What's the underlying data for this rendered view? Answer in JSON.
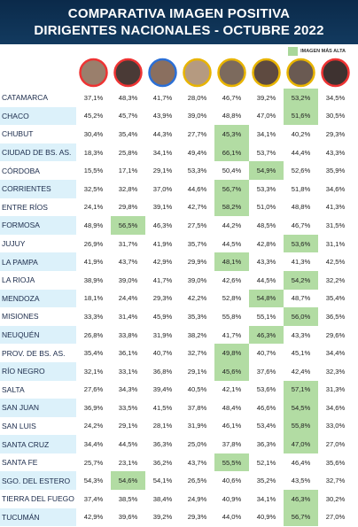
{
  "header": {
    "title_line1": "COMPARATIVA IMAGEN POSITIVA",
    "title_line2": "DIRIGENTES NACIONALES - OCTUBRE 2022"
  },
  "legend": {
    "label": "IMAGEN MÁS ALTA",
    "color": "#a9d79a"
  },
  "table": {
    "highlight_color": "#b2dca3",
    "rows": [
      {
        "name": "CATAMARCA",
        "values": [
          "37,1%",
          "48,3%",
          "41,7%",
          "28,0%",
          "46,7%",
          "39,2%",
          "53,2%",
          "34,5%"
        ],
        "highlight": 6
      },
      {
        "name": "CHACO",
        "values": [
          "45,2%",
          "45,7%",
          "43,9%",
          "39,0%",
          "48,8%",
          "47,0%",
          "51,6%",
          "30,5%"
        ],
        "highlight": 6
      },
      {
        "name": "CHUBUT",
        "values": [
          "30,4%",
          "35,4%",
          "44,3%",
          "27,7%",
          "45,3%",
          "34,1%",
          "40,2%",
          "29,3%"
        ],
        "highlight": 4
      },
      {
        "name": "CIUDAD DE BS. AS.",
        "values": [
          "18,3%",
          "25,8%",
          "34,1%",
          "49,4%",
          "66,1%",
          "53,7%",
          "44,4%",
          "43,3%"
        ],
        "highlight": 4
      },
      {
        "name": "CÓRDOBA",
        "values": [
          "15,5%",
          "17,1%",
          "29,1%",
          "53,3%",
          "50,4%",
          "54,9%",
          "52,6%",
          "35,9%"
        ],
        "highlight": 5
      },
      {
        "name": "CORRIENTES",
        "values": [
          "32,5%",
          "32,8%",
          "37,0%",
          "44,6%",
          "56,7%",
          "53,3%",
          "51,8%",
          "34,6%"
        ],
        "highlight": 4
      },
      {
        "name": "ENTRE RÍOS",
        "values": [
          "24,1%",
          "29,8%",
          "39,1%",
          "42,7%",
          "58,2%",
          "51,0%",
          "48,8%",
          "41,3%"
        ],
        "highlight": 4
      },
      {
        "name": "FORMOSA",
        "values": [
          "48,9%",
          "56,5%",
          "46,3%",
          "27,5%",
          "44,2%",
          "48,5%",
          "46,7%",
          "31,5%"
        ],
        "highlight": 1
      },
      {
        "name": "JUJUY",
        "values": [
          "26,9%",
          "31,7%",
          "41,9%",
          "35,7%",
          "44,5%",
          "42,8%",
          "53,6%",
          "31,1%"
        ],
        "highlight": 6
      },
      {
        "name": "LA PAMPA",
        "values": [
          "41,9%",
          "43,7%",
          "42,9%",
          "29,9%",
          "48,1%",
          "43,3%",
          "41,3%",
          "42,5%"
        ],
        "highlight": 4
      },
      {
        "name": "LA RIOJA",
        "values": [
          "38,9%",
          "39,0%",
          "41,7%",
          "39,0%",
          "42,6%",
          "44,5%",
          "54,2%",
          "32,2%"
        ],
        "highlight": 6
      },
      {
        "name": "MENDOZA",
        "values": [
          "18,1%",
          "24,4%",
          "29,3%",
          "42,2%",
          "52,8%",
          "54,8%",
          "48,7%",
          "35,4%"
        ],
        "highlight": 5
      },
      {
        "name": "MISIONES",
        "values": [
          "33,3%",
          "31,4%",
          "45,9%",
          "35,3%",
          "55,8%",
          "55,1%",
          "56,0%",
          "36,5%"
        ],
        "highlight": 6
      },
      {
        "name": "NEUQUÉN",
        "values": [
          "26,8%",
          "33,8%",
          "31,9%",
          "38,2%",
          "41,7%",
          "46,3%",
          "43,3%",
          "29,6%"
        ],
        "highlight": 5
      },
      {
        "name": "PROV. DE BS. AS.",
        "values": [
          "35,4%",
          "36,1%",
          "40,7%",
          "32,7%",
          "49,8%",
          "40,7%",
          "45,1%",
          "34,4%"
        ],
        "highlight": 4
      },
      {
        "name": "RÍO NEGRO",
        "values": [
          "32,1%",
          "33,1%",
          "36,8%",
          "29,1%",
          "45,6%",
          "37,6%",
          "42,4%",
          "32,3%"
        ],
        "highlight": 4
      },
      {
        "name": "SALTA",
        "values": [
          "27,6%",
          "34,3%",
          "39,4%",
          "40,5%",
          "42,1%",
          "53,6%",
          "57,1%",
          "31,3%"
        ],
        "highlight": 6
      },
      {
        "name": "SAN JUAN",
        "values": [
          "36,9%",
          "33,5%",
          "41,5%",
          "37,8%",
          "48,4%",
          "46,6%",
          "54,5%",
          "34,6%"
        ],
        "highlight": 6
      },
      {
        "name": "SAN LUIS",
        "values": [
          "24,2%",
          "29,1%",
          "28,1%",
          "31,9%",
          "46,1%",
          "53,4%",
          "55,8%",
          "33,0%"
        ],
        "highlight": 6
      },
      {
        "name": "SANTA CRUZ",
        "values": [
          "34,4%",
          "44,5%",
          "36,3%",
          "25,0%",
          "37,8%",
          "36,3%",
          "47,0%",
          "27,0%"
        ],
        "highlight": 6
      },
      {
        "name": "SANTA FE",
        "values": [
          "25,7%",
          "23,1%",
          "36,2%",
          "43,7%",
          "55,5%",
          "52,1%",
          "46,4%",
          "35,6%"
        ],
        "highlight": 4
      },
      {
        "name": "SGO. DEL ESTERO",
        "values": [
          "54,3%",
          "54,6%",
          "54,1%",
          "26,5%",
          "40,6%",
          "35,2%",
          "43,5%",
          "32,7%"
        ],
        "highlight": 1
      },
      {
        "name": "TIERRA DEL FUEGO",
        "values": [
          "37,4%",
          "38,5%",
          "38,4%",
          "24,9%",
          "40,9%",
          "34,1%",
          "46,3%",
          "30,2%"
        ],
        "highlight": 6
      },
      {
        "name": "TUCUMÁN",
        "values": [
          "42,9%",
          "39,6%",
          "39,2%",
          "29,3%",
          "44,0%",
          "40,9%",
          "56,7%",
          "27,0%"
        ],
        "highlight": 6
      }
    ]
  }
}
